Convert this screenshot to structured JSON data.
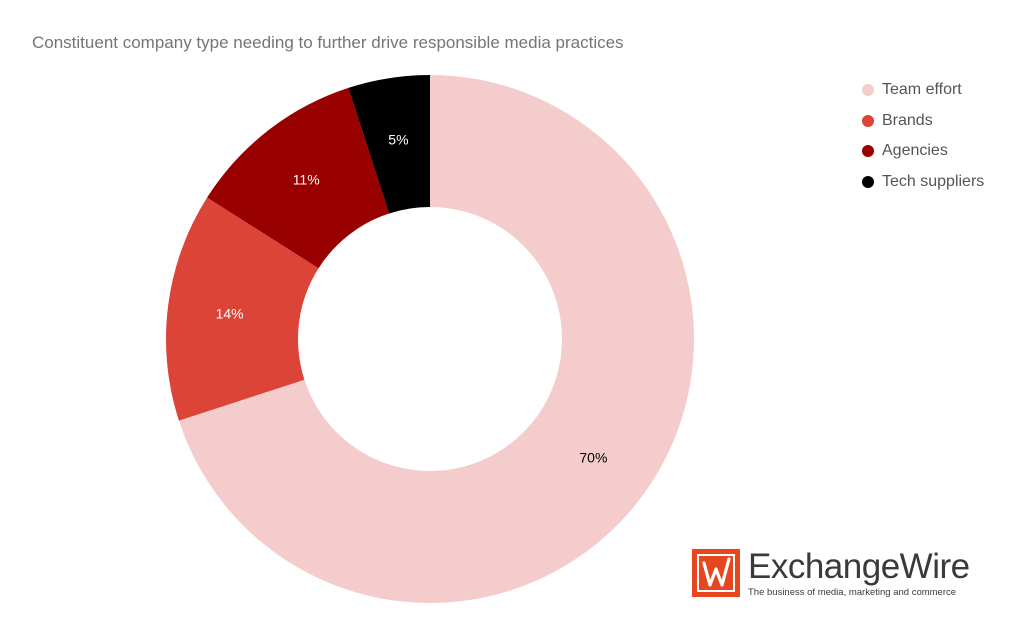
{
  "chart_data": {
    "type": "pie",
    "title": "Constituent company type needing to further drive responsible media practices",
    "donut": true,
    "legend_position": "right",
    "slices": [
      {
        "label": "Team effort",
        "value": 70,
        "display": "70%",
        "color": "#f4cccc",
        "text_color": "#000000"
      },
      {
        "label": "Brands",
        "value": 14,
        "display": "14%",
        "color": "#db4437",
        "text_color": "#ffffff"
      },
      {
        "label": "Agencies",
        "value": 11,
        "display": "11%",
        "color": "#990000",
        "text_color": "#ffffff"
      },
      {
        "label": "Tech suppliers",
        "value": 5,
        "display": "5%",
        "color": "#000000",
        "text_color": "#ffffff"
      }
    ]
  },
  "branding": {
    "logo_word_1": "Exchange",
    "logo_word_2": "Wire",
    "tagline": "The business of media, marketing and commerce",
    "logo_color": "#e8461f"
  }
}
